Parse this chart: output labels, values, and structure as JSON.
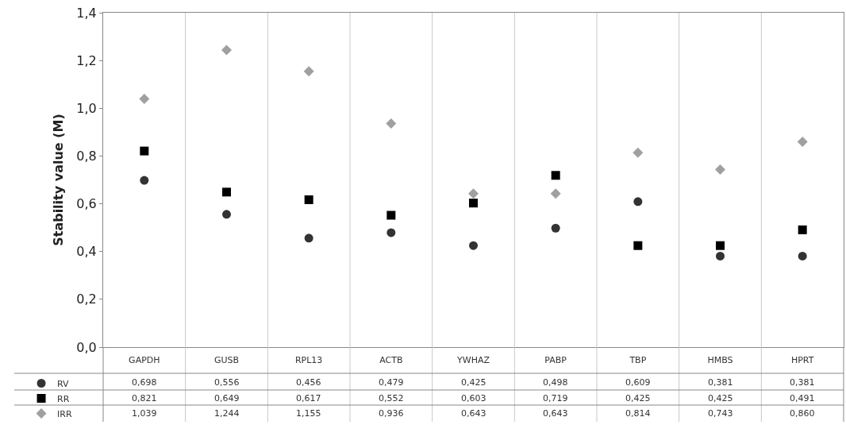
{
  "chart_data": {
    "type": "scatter",
    "ylabel": "Stability value (M)",
    "categories": [
      "GAPDH",
      "GUSB",
      "RPL13",
      "ACTB",
      "YWHAZ",
      "PABP",
      "TBP",
      "HMBS",
      "HPRT"
    ],
    "series": [
      {
        "name": "RV",
        "color": "#333333",
        "marker": "circle",
        "values": [
          0.698,
          0.556,
          0.456,
          0.479,
          0.425,
          0.498,
          0.609,
          0.381,
          0.381
        ],
        "value_labels": [
          "0,698",
          "0,556",
          "0,456",
          "0,479",
          "0,425",
          "0,498",
          "0,609",
          "0,381",
          "0,381"
        ]
      },
      {
        "name": "RR",
        "color": "#000000",
        "marker": "square",
        "values": [
          0.821,
          0.649,
          0.617,
          0.552,
          0.603,
          0.719,
          0.425,
          0.425,
          0.491
        ],
        "value_labels": [
          "0,821",
          "0,649",
          "0,617",
          "0,552",
          "0,603",
          "0,719",
          "0,425",
          "0,425",
          "0,491"
        ]
      },
      {
        "name": "IRR",
        "color": "#a0a0a0",
        "marker": "diamond",
        "values": [
          1.039,
          1.244,
          1.155,
          0.936,
          0.643,
          0.643,
          0.814,
          0.743,
          0.86
        ],
        "value_labels": [
          "1,039",
          "1,244",
          "1,155",
          "0,936",
          "0,643",
          "0,643",
          "0,814",
          "0,743",
          "0,860"
        ]
      }
    ],
    "ylim": [
      0,
      1.4
    ],
    "yticks": [
      {
        "value": 0,
        "label": "0,0"
      },
      {
        "value": 0.2,
        "label": "0,2"
      },
      {
        "value": 0.4,
        "label": "0,4"
      },
      {
        "value": 0.6,
        "label": "0,6"
      },
      {
        "value": 0.8,
        "label": "0,8"
      },
      {
        "value": 1.0,
        "label": "1,0"
      },
      {
        "value": 1.2,
        "label": "1,2"
      },
      {
        "value": 1.4,
        "label": "1,4"
      }
    ],
    "grid": "x",
    "legend": "bottom left"
  }
}
